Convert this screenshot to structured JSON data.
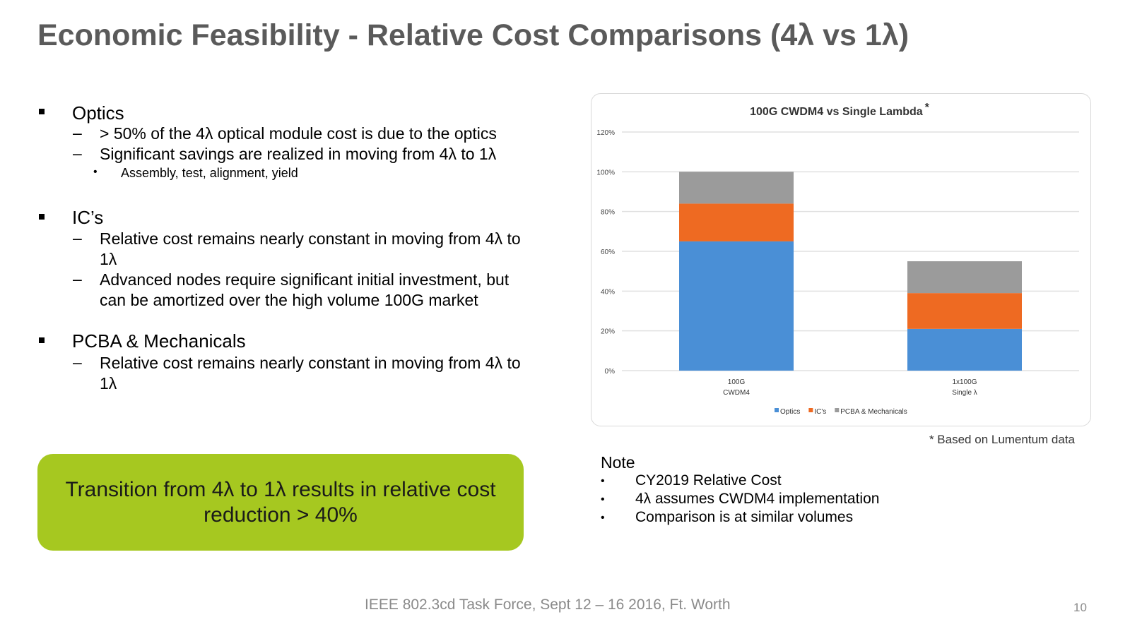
{
  "title": "Economic Feasibility - Relative Cost Comparisons (4λ vs 1λ)",
  "bullets": [
    {
      "heading": "Optics",
      "subs": [
        "> 50% of the 4λ optical module cost is due to the optics",
        "Significant savings are realized in moving from 4λ to 1λ"
      ],
      "subsubs": [
        "Assembly, test, alignment, yield"
      ]
    },
    {
      "heading": "IC’s",
      "subs": [
        "Relative cost remains nearly constant in moving from 4λ to",
        "1λ",
        "Advanced nodes require significant initial investment, but",
        "can be amortized over the high volume 100G market"
      ]
    },
    {
      "heading": "PCBA & Mechanicals",
      "subs": [
        "Relative cost remains nearly constant in moving from 4λ to",
        "1λ"
      ]
    }
  ],
  "callout": "Transition from 4λ to 1λ results in relative cost reduction > 40%",
  "footnote": "* Based on Lumentum data",
  "note": {
    "heading": "Note",
    "items": [
      "CY2019 Relative Cost",
      "4λ assumes CWDM4 implementation",
      "Comparison is at similar volumes"
    ]
  },
  "footer": "IEEE 802.3cd Task Force, Sept 12 – 16 2016, Ft. Worth",
  "page_number": "10",
  "chart_data": {
    "type": "bar",
    "stacked": true,
    "title": "100G CWDM4 vs Single Lambda",
    "title_mark": "*",
    "categories": [
      [
        "100G",
        "CWDM4"
      ],
      [
        "1x100G",
        "Single λ"
      ]
    ],
    "series": [
      {
        "name": "Optics",
        "values": [
          65,
          21
        ],
        "color": "#4a8fd6"
      },
      {
        "name": "IC's",
        "values": [
          19,
          18
        ],
        "color": "#ee6a22"
      },
      {
        "name": "PCBA & Mechanicals",
        "values": [
          16,
          16
        ],
        "color": "#9b9b9b"
      }
    ],
    "yticks": [
      "0%",
      "20%",
      "40%",
      "60%",
      "80%",
      "100%",
      "120%"
    ],
    "ylim": [
      0,
      120
    ],
    "grid": true,
    "legend": "bottom"
  }
}
